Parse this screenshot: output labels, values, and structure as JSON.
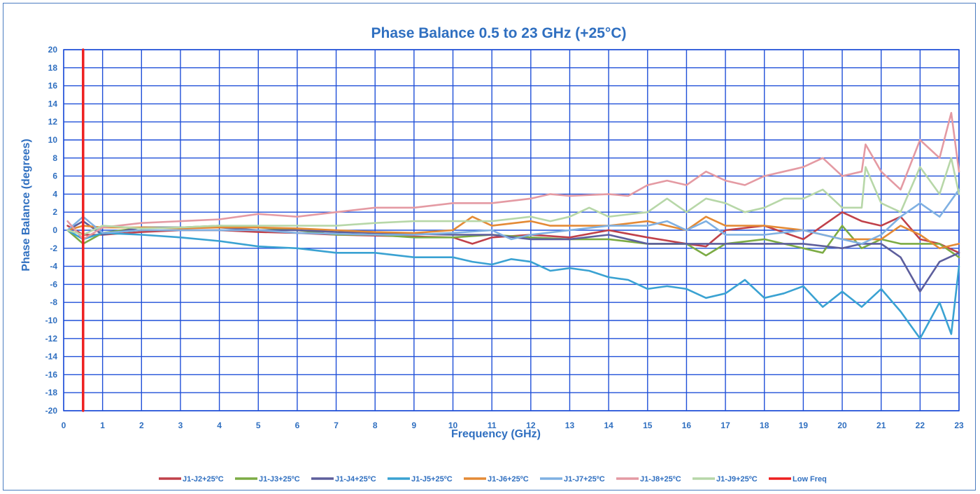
{
  "chart_data": {
    "type": "line",
    "title": "Phase Balance 0.5 to 23 GHz (+25°C)",
    "xlabel": "Frequency (GHz)",
    "ylabel": "Phase Balance (degrees)",
    "xlim": [
      0,
      23
    ],
    "ylim": [
      -20,
      20
    ],
    "x_ticks": [
      0,
      1,
      2,
      3,
      4,
      5,
      6,
      7,
      8,
      9,
      10,
      11,
      12,
      13,
      14,
      15,
      16,
      17,
      18,
      19,
      20,
      21,
      22,
      23
    ],
    "y_ticks": [
      -20,
      -18,
      -16,
      -14,
      -12,
      -10,
      -8,
      -6,
      -4,
      -2,
      0,
      2,
      4,
      6,
      8,
      10,
      12,
      14,
      16,
      18,
      20
    ],
    "grid": true,
    "legend_position": "bottom",
    "colors": {
      "title": "#2f6fc0",
      "grid": "#1f4fd8",
      "frame": "#4a7cc0"
    },
    "series": [
      {
        "name": "J1-J2+25ºC",
        "color": "#c0414a",
        "x": [
          0.1,
          0.5,
          1,
          2,
          3,
          4,
          5,
          6,
          7,
          8,
          9,
          10,
          10.5,
          11,
          12,
          13,
          14,
          15,
          16,
          16.5,
          17,
          18,
          19,
          20,
          20.5,
          21,
          21.5,
          22,
          22.5,
          23
        ],
        "y": [
          0.5,
          -0.5,
          -0.5,
          -0.2,
          0,
          0,
          -0.2,
          -0.3,
          -0.5,
          -0.6,
          -0.7,
          -0.8,
          -1.5,
          -0.8,
          -0.5,
          -0.8,
          0,
          -0.8,
          -1.5,
          -1.8,
          0,
          0.5,
          -1.0,
          2.0,
          1.0,
          0.5,
          1.5,
          -1.0,
          -1.5,
          -2.5
        ]
      },
      {
        "name": "J1-J3+25ºC",
        "color": "#7cab44",
        "x": [
          0.1,
          0.5,
          1,
          2,
          3,
          4,
          5,
          6,
          7,
          8,
          9,
          10,
          11,
          12,
          13,
          14,
          15,
          16,
          16.5,
          17,
          18,
          19,
          19.5,
          20,
          20.5,
          21,
          21.5,
          22,
          22.5,
          23
        ],
        "y": [
          0,
          -1.5,
          -0.3,
          0.3,
          0.3,
          0.5,
          0.3,
          0,
          -0.5,
          -0.5,
          -0.8,
          -0.8,
          -0.5,
          -0.8,
          -1.0,
          -1.0,
          -1.5,
          -1.5,
          -2.8,
          -1.5,
          -1.0,
          -2.0,
          -2.5,
          0.5,
          -2.0,
          -1.0,
          -1.5,
          -1.5,
          -1.5,
          -3.0
        ]
      },
      {
        "name": "J1-J4+25ºC",
        "color": "#5d5e9c",
        "x": [
          0.1,
          0.5,
          1,
          2,
          3,
          4,
          5,
          6,
          7,
          8,
          9,
          10,
          11,
          12,
          13,
          14,
          15,
          16,
          17,
          18,
          19,
          20,
          20.5,
          21,
          21.5,
          22,
          22.5,
          23
        ],
        "y": [
          0,
          1.0,
          -0.5,
          0.3,
          0.3,
          0.3,
          0,
          0,
          -0.2,
          -0.3,
          -0.4,
          -0.5,
          -0.5,
          -1.0,
          -1.0,
          -0.5,
          -1.5,
          -1.5,
          -1.5,
          -1.5,
          -1.5,
          -2.0,
          -1.5,
          -1.5,
          -3.0,
          -6.8,
          -3.5,
          -2.5
        ]
      },
      {
        "name": "J1-J5+25ºC",
        "color": "#3aa2d2",
        "x": [
          0.1,
          0.5,
          1,
          2,
          3,
          4,
          5,
          6,
          7,
          8,
          9,
          10,
          10.5,
          11,
          11.5,
          12,
          12.5,
          13,
          13.5,
          14,
          14.5,
          15,
          15.5,
          16,
          16.5,
          17,
          17.5,
          18,
          18.5,
          19,
          19.5,
          20,
          20.5,
          21,
          21.5,
          22,
          22.5,
          22.8,
          23
        ],
        "y": [
          0,
          -1.0,
          -0.3,
          -0.5,
          -0.8,
          -1.2,
          -1.8,
          -2.0,
          -2.5,
          -2.5,
          -3.0,
          -3.0,
          -3.5,
          -3.8,
          -3.2,
          -3.5,
          -4.5,
          -4.2,
          -4.5,
          -5.2,
          -5.5,
          -6.5,
          -6.2,
          -6.5,
          -7.5,
          -7.0,
          -5.5,
          -7.5,
          -7.0,
          -6.2,
          -8.5,
          -6.8,
          -8.5,
          -6.5,
          -9.0,
          -12.0,
          -8.0,
          -11.5,
          -4.0
        ]
      },
      {
        "name": "J1-J6+25ºC",
        "color": "#e48a35",
        "x": [
          0.1,
          0.5,
          1,
          2,
          3,
          4,
          5,
          6,
          7,
          8,
          9,
          10,
          10.5,
          11,
          12,
          12.5,
          13,
          14,
          15,
          16,
          16.5,
          17,
          18,
          19,
          20,
          21,
          21.5,
          22,
          22.5,
          23
        ],
        "y": [
          0,
          0.5,
          0.3,
          0.3,
          0.2,
          0.3,
          0.3,
          0.2,
          0,
          -0.2,
          -0.3,
          0,
          1.5,
          0.5,
          1.0,
          0.5,
          0.5,
          0.5,
          1.0,
          0,
          1.5,
          0.5,
          0.5,
          0,
          -1.0,
          -1.0,
          0.5,
          -0.5,
          -2.0,
          -1.5
        ]
      },
      {
        "name": "J1-J7+25ºC",
        "color": "#7fb0e2",
        "x": [
          0.1,
          0.5,
          1,
          2,
          3,
          4,
          5,
          6,
          7,
          8,
          9,
          10,
          11,
          11.5,
          12,
          13,
          14,
          15,
          15.5,
          16,
          16.5,
          17,
          18,
          19,
          20,
          20.5,
          21,
          21.5,
          22,
          22.5,
          23
        ],
        "y": [
          0,
          1.5,
          -0.3,
          0,
          0,
          0,
          0,
          -0.3,
          -0.4,
          -0.5,
          -0.5,
          -0.3,
          0,
          -1.0,
          -0.5,
          0,
          0.5,
          0.5,
          1.0,
          0,
          1.0,
          -0.5,
          -0.5,
          0,
          -1.0,
          -1.5,
          -0.5,
          1.5,
          3.0,
          1.5,
          4.5
        ]
      },
      {
        "name": "J1-J8+25ºC",
        "color": "#e49aa3",
        "x": [
          0.1,
          0.5,
          1,
          2,
          3,
          4,
          5,
          6,
          7,
          8,
          9,
          10,
          11,
          12,
          12.5,
          13,
          14,
          14.5,
          15,
          15.5,
          16,
          16.5,
          17,
          17.5,
          18,
          18.5,
          19,
          19.5,
          20,
          20.5,
          20.6,
          21,
          21.5,
          22,
          22.5,
          22.8,
          23
        ],
        "y": [
          1.0,
          -1.0,
          0.3,
          0.8,
          1.0,
          1.2,
          1.8,
          1.5,
          2.0,
          2.5,
          2.5,
          3.0,
          3.0,
          3.5,
          4.0,
          3.8,
          4.0,
          3.8,
          5.0,
          5.5,
          5.0,
          6.5,
          5.5,
          5.0,
          6.0,
          6.5,
          7.0,
          8.0,
          6.0,
          6.5,
          9.5,
          6.5,
          4.5,
          10.0,
          8.0,
          13.0,
          6.5
        ]
      },
      {
        "name": "J1-J9+25ºC",
        "color": "#b7d7a8",
        "x": [
          0.1,
          0.5,
          1,
          2,
          3,
          4,
          5,
          6,
          7,
          8,
          9,
          10,
          11,
          12,
          12.5,
          13,
          13.5,
          14,
          15,
          15.5,
          16,
          16.5,
          17,
          17.5,
          18,
          18.5,
          19,
          19.5,
          20,
          20.5,
          20.6,
          21,
          21.5,
          22,
          22.5,
          22.8,
          23
        ],
        "y": [
          0,
          -0.5,
          0.5,
          0.2,
          0.3,
          0.5,
          0.5,
          0.5,
          0.5,
          0.8,
          1.0,
          1.0,
          1.0,
          1.5,
          1.0,
          1.5,
          2.5,
          1.5,
          2.0,
          3.5,
          2.0,
          3.5,
          3.0,
          2.0,
          2.5,
          3.5,
          3.5,
          4.5,
          2.5,
          2.5,
          7.0,
          3.0,
          2.0,
          7.0,
          4.0,
          8.0,
          4.0
        ]
      },
      {
        "name": "Low Freq",
        "color": "#ee2020",
        "x": [
          0.5,
          0.5
        ],
        "y": [
          -20,
          20
        ]
      }
    ]
  }
}
